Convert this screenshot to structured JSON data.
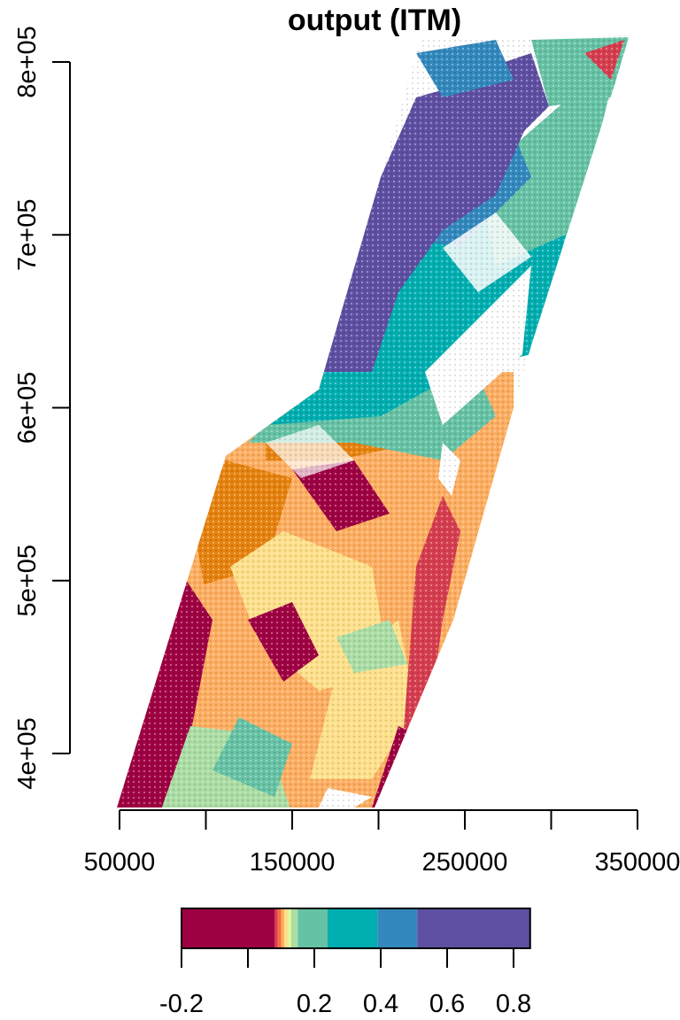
{
  "map": {
    "title": "output (ITM)",
    "x_axis": {
      "range": [
        50000,
        350000
      ],
      "ticks": [
        50000,
        100000,
        150000,
        200000,
        250000,
        300000,
        350000
      ],
      "tick_labels": [
        "50000",
        "150000",
        "250000",
        "350000"
      ],
      "labelled_ticks": [
        50000,
        150000,
        250000,
        350000
      ]
    },
    "y_axis": {
      "range": [
        400000,
        800000
      ],
      "ticks": [
        400000,
        500000,
        600000,
        700000,
        800000
      ],
      "tick_labels": [
        "4e+05",
        "5e+05",
        "6e+05",
        "7e+05",
        "8e+05"
      ]
    }
  },
  "legend": {
    "range": [
      -0.2,
      0.85
    ],
    "tick_values": [
      -0.2,
      0,
      0.2,
      0.4,
      0.6,
      0.8
    ],
    "tick_labels": [
      "-0.2",
      "0.2",
      "0.4",
      "0.6",
      "0.8"
    ],
    "labelled_values": [
      -0.2,
      0.2,
      0.4,
      0.6,
      0.8
    ],
    "bins": [
      {
        "from": -0.2,
        "to": 0.08,
        "color": "#9E0142"
      },
      {
        "from": 0.08,
        "to": 0.09,
        "color": "#D53E4F"
      },
      {
        "from": 0.09,
        "to": 0.1,
        "color": "#F46D43"
      },
      {
        "from": 0.1,
        "to": 0.11,
        "color": "#FDAE61"
      },
      {
        "from": 0.11,
        "to": 0.12,
        "color": "#FEE08B"
      },
      {
        "from": 0.12,
        "to": 0.13,
        "color": "#E6F598"
      },
      {
        "from": 0.13,
        "to": 0.15,
        "color": "#ABDDA4"
      },
      {
        "from": 0.15,
        "to": 0.24,
        "color": "#66C2A5"
      },
      {
        "from": 0.24,
        "to": 0.39,
        "color": "#00AEB0"
      },
      {
        "from": 0.39,
        "to": 0.51,
        "color": "#3288BD"
      },
      {
        "from": 0.51,
        "to": 0.85,
        "color": "#5E4FA2"
      }
    ]
  },
  "colors": {
    "dark_red": "#9E0142",
    "red": "#D53E4F",
    "orange": "#E6820F",
    "light_orange": "#FDAE61",
    "yellow": "#FEE08B",
    "pale_green": "#ABDDA4",
    "green": "#66C2A5",
    "teal": "#00AEB0",
    "blue": "#3288BD",
    "purple": "#5E4FA2"
  }
}
